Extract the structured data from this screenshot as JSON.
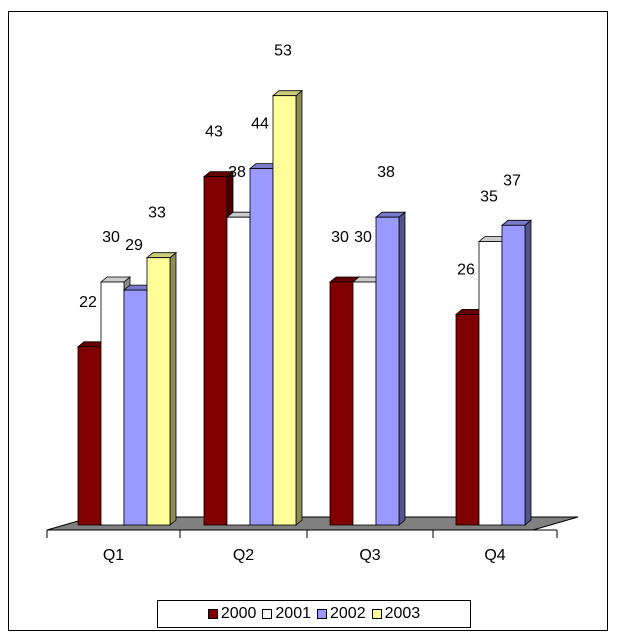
{
  "chart_data": {
    "type": "bar",
    "title": "",
    "xlabel": "",
    "ylabel": "",
    "categories": [
      "Q1",
      "Q2",
      "Q3",
      "Q4"
    ],
    "ylim": [
      0,
      60
    ],
    "grid": false,
    "legend_position": "bottom",
    "series": [
      {
        "name": "2000",
        "color": "#800000",
        "values": [
          22,
          43,
          30,
          26
        ]
      },
      {
        "name": "2001",
        "color": "#ffffff",
        "values": [
          30,
          38,
          30,
          35
        ]
      },
      {
        "name": "2002",
        "color": "#9999ff",
        "values": [
          29,
          44,
          38,
          37
        ]
      },
      {
        "name": "2003",
        "color": "#ffff99",
        "values": [
          33,
          53,
          null,
          null
        ]
      }
    ]
  }
}
